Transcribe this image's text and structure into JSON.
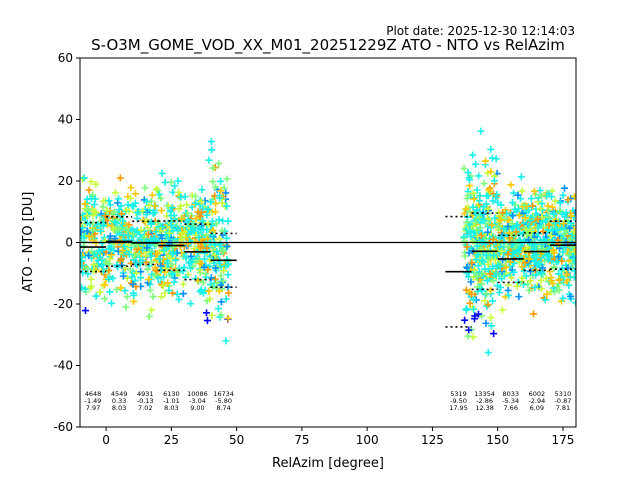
{
  "plot_date": "Plot date: 2025-12-30 12:14:03",
  "chart_data": {
    "type": "scatter",
    "title": "S-O3M_GOME_VOD_XX_M01_20251229Z ATO - NTO vs RelAzim",
    "xlabel": "RelAzim [degree]",
    "ylabel": "ATO - NTO [DU]",
    "xlim": [
      -10,
      180
    ],
    "ylim": [
      -60,
      60
    ],
    "xticks": [
      0,
      25,
      50,
      75,
      100,
      125,
      150,
      175
    ],
    "yticks": [
      -60,
      -40,
      -20,
      0,
      20,
      40,
      60
    ],
    "grid": false,
    "marker": "+",
    "colormap": [
      "#0000ff",
      "#0090ff",
      "#18f0e8",
      "#7cff7c",
      "#c8ff3c",
      "#ffc800",
      "#ff9800"
    ],
    "zero_line": 0,
    "bins": [
      {
        "x": -5,
        "count": "4648",
        "mean": "-1.49",
        "std": "7.97"
      },
      {
        "x": 5,
        "count": "4549",
        "mean": "0.33",
        "std": "8.03"
      },
      {
        "x": 15,
        "count": "4931",
        "mean": "-0.13",
        "std": "7.02"
      },
      {
        "x": 25,
        "count": "6130",
        "mean": "-1.01",
        "std": "8.03"
      },
      {
        "x": 35,
        "count": "10086",
        "mean": "-3.04",
        "std": "9.00"
      },
      {
        "x": 45,
        "count": "16734",
        "mean": "-5.80",
        "std": "8.74"
      },
      {
        "x": 135,
        "count": "5319",
        "mean": "-9.50",
        "std": "17.95"
      },
      {
        "x": 145,
        "count": "13354",
        "mean": "-2.86",
        "std": "12.38"
      },
      {
        "x": 155,
        "count": "8033",
        "mean": "-5.34",
        "std": "7.66"
      },
      {
        "x": 165,
        "count": "6002",
        "mean": "-2.94",
        "std": "6.09"
      },
      {
        "x": 175,
        "count": "5310",
        "mean": "-0.87",
        "std": "7.81"
      }
    ],
    "clusters": [
      {
        "x_range": [
          -10,
          47
        ],
        "y_center": 0,
        "y_spread": 18
      },
      {
        "x_range": [
          137,
          180
        ],
        "y_center": 0,
        "y_spread": 18
      }
    ]
  }
}
